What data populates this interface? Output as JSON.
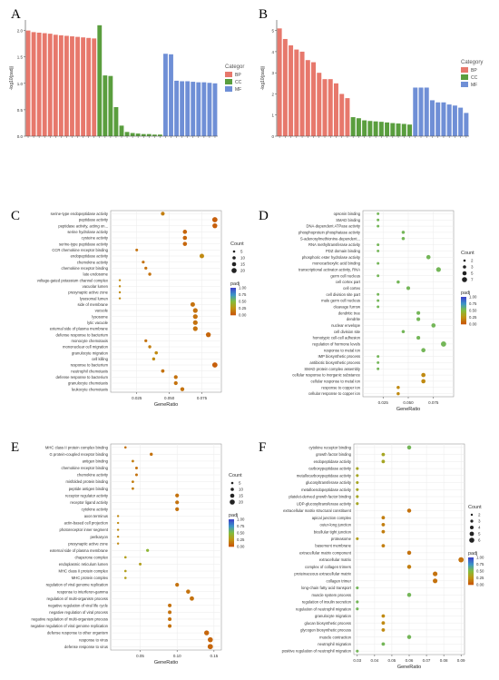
{
  "panel_letters": [
    "A",
    "B",
    "C",
    "D",
    "E",
    "F"
  ],
  "chart_data": [
    {
      "type": "bar",
      "panel": "A",
      "ylabel": "-log10(padj)",
      "legend_title": "Categor",
      "legend_placement": "right",
      "groups": [
        "BP",
        "CC",
        "MF"
      ],
      "colors": {
        "BP": "#e7786c",
        "CC": "#5a9e3e",
        "MF": "#6f8fd6"
      },
      "ylim": [
        0,
        2.2
      ],
      "yticks": [
        "0.0",
        "0.5",
        "1.0",
        "1.5",
        "2.0"
      ],
      "values": [
        2.0,
        1.97,
        1.96,
        1.95,
        1.94,
        1.92,
        1.91,
        1.9,
        1.89,
        1.88,
        1.87,
        1.86,
        1.85,
        2.1,
        1.15,
        1.14,
        0.55,
        0.2,
        0.08,
        0.06,
        0.05,
        0.04,
        0.04,
        0.03,
        0.03,
        1.56,
        1.55,
        1.05,
        1.04,
        1.04,
        1.03,
        1.02,
        1.02,
        1.01,
        1.0
      ],
      "bar_groups": [
        "BP",
        "BP",
        "BP",
        "BP",
        "BP",
        "BP",
        "BP",
        "BP",
        "BP",
        "BP",
        "BP",
        "BP",
        "BP",
        "CC",
        "CC",
        "CC",
        "CC",
        "CC",
        "CC",
        "CC",
        "CC",
        "CC",
        "CC",
        "CC",
        "CC",
        "MF",
        "MF",
        "MF",
        "MF",
        "MF",
        "MF",
        "MF",
        "MF",
        "MF",
        "MF"
      ]
    },
    {
      "type": "bar",
      "panel": "B",
      "ylabel": "-log10(padj)",
      "legend_title": "Category",
      "legend_placement": "right",
      "groups": [
        "BP",
        "CC",
        "MF"
      ],
      "colors": {
        "BP": "#e7786c",
        "CC": "#5a9e3e",
        "MF": "#6f8fd6"
      },
      "ylim": [
        0,
        5.5
      ],
      "yticks": [
        "0",
        "1",
        "2",
        "3",
        "4",
        "5"
      ],
      "values": [
        5.1,
        4.6,
        4.3,
        4.1,
        4.0,
        3.6,
        3.5,
        3.0,
        2.7,
        2.7,
        2.5,
        2.0,
        1.8,
        0.9,
        0.85,
        0.75,
        0.72,
        0.7,
        0.68,
        0.65,
        0.62,
        0.6,
        0.58,
        0.55,
        2.3,
        2.3,
        2.3,
        1.7,
        1.6,
        1.6,
        1.5,
        1.45,
        1.35,
        1.1
      ],
      "bar_groups": [
        "BP",
        "BP",
        "BP",
        "BP",
        "BP",
        "BP",
        "BP",
        "BP",
        "BP",
        "BP",
        "BP",
        "BP",
        "BP",
        "CC",
        "CC",
        "CC",
        "CC",
        "CC",
        "CC",
        "CC",
        "CC",
        "CC",
        "CC",
        "CC",
        "MF",
        "MF",
        "MF",
        "MF",
        "MF",
        "MF",
        "MF",
        "MF",
        "MF",
        "MF"
      ]
    },
    {
      "type": "scatter",
      "panel": "C",
      "xlabel": "GeneRatio",
      "xticks": [
        "0.025",
        "0.050",
        "0.075"
      ],
      "xlim": [
        0.005,
        0.09
      ],
      "size_legend_title": "Count",
      "size_legend": [
        "5",
        "10",
        "15",
        "20"
      ],
      "color_legend_title": "padj",
      "color_legend": [
        "1.00",
        "0.75",
        "0.50",
        "0.25",
        "0.00"
      ],
      "terms": [
        "serine-type endopeptidase activity",
        "peptidase activity",
        "peptidase activity, acting on...",
        "serine hydrolase activity",
        "cysteine activity",
        "serine-type peptidase activity",
        "CCR chemokine receptor binding",
        "endopeptidase activity",
        "chemokine activity",
        "chemokine receptor binding",
        "late endosome",
        "voltage-gated potassium channel complex",
        "vacuolar lumen",
        "presynaptic active zone",
        "lysosomal lumen",
        "side of membrane",
        "vacuole",
        "lysosome",
        "lytic vacuole",
        "external side of plasma membrane",
        "defense response to bacterium",
        "monocyte chemotaxis",
        "mononuclear cell migration",
        "granulocyte migration",
        "cell killing",
        "response to bacterium",
        "neutrophil chemotaxis",
        "defense response to bacterium",
        "granulocyte chemotaxis",
        "leukocyte chemotaxis"
      ],
      "x": [
        0.045,
        0.085,
        0.085,
        0.062,
        0.062,
        0.062,
        0.025,
        0.075,
        0.03,
        0.032,
        0.035,
        0.012,
        0.012,
        0.012,
        0.012,
        0.068,
        0.07,
        0.07,
        0.07,
        0.07,
        0.08,
        0.032,
        0.035,
        0.04,
        0.038,
        0.085,
        0.045,
        0.055,
        0.055,
        0.06
      ],
      "count": [
        12,
        20,
        18,
        14,
        14,
        14,
        6,
        16,
        7,
        7,
        8,
        3,
        3,
        3,
        3,
        16,
        17,
        17,
        17,
        17,
        18,
        7,
        8,
        9,
        8,
        20,
        10,
        12,
        12,
        13
      ],
      "padj": [
        0.15,
        0.02,
        0.02,
        0.05,
        0.05,
        0.05,
        0.1,
        0.2,
        0.1,
        0.1,
        0.1,
        0.2,
        0.2,
        0.2,
        0.2,
        0.1,
        0.1,
        0.1,
        0.1,
        0.1,
        0.05,
        0.1,
        0.15,
        0.2,
        0.2,
        0.02,
        0.1,
        0.1,
        0.1,
        0.1
      ]
    },
    {
      "type": "scatter",
      "panel": "D",
      "xlabel": "GeneRatio",
      "xticks": [
        "0.025",
        "0.050",
        "0.075"
      ],
      "xlim": [
        0.005,
        0.095
      ],
      "size_legend_title": "Count",
      "size_legend": [
        "2",
        "3",
        "5",
        "7"
      ],
      "color_legend_title": "padj",
      "color_legend": [
        "1.00",
        "0.75",
        "0.50",
        "0.25",
        "0.00"
      ],
      "terms": [
        "opsonin binding",
        "SMAD binding",
        "DNA-dependent ATPase activity",
        "phosphoprotein phosphatase activity",
        "S-adenosylmethionine-dependent...",
        "RNA methyltransferase activity",
        "PDZ domain binding",
        "phosphoric ester hydrolase activity",
        "monocarboxylic acid binding",
        "transcriptional activator activity, RNA",
        "germ cell nucleus",
        "cell cortex part",
        "cell cortex",
        "cell division site part",
        "male germ cell nucleus",
        "cleavage furrow",
        "dendritic tree",
        "dendrite",
        "nuclear envelope",
        "cell division site",
        "homotypic cell-cell adhesion",
        "regulation of hormone levels",
        "response to metal ion",
        "IMP biosynthetic process",
        "antibiotic biosynthetic process",
        "SMAD protein complex assembly",
        "cellular response to inorganic substance",
        "cellular response to metal ion",
        "response to copper ion",
        "cellular response to copper ion"
      ],
      "x": [
        0.02,
        0.02,
        0.02,
        0.045,
        0.045,
        0.02,
        0.02,
        0.07,
        0.02,
        0.08,
        0.02,
        0.04,
        0.05,
        0.02,
        0.02,
        0.02,
        0.06,
        0.06,
        0.075,
        0.045,
        0.06,
        0.085,
        0.065,
        0.02,
        0.02,
        0.02,
        0.065,
        0.065,
        0.04,
        0.04
      ],
      "count": [
        2,
        2,
        2,
        3,
        3,
        2,
        2,
        5,
        2,
        6,
        2,
        3,
        4,
        2,
        2,
        2,
        4,
        4,
        5,
        3,
        4,
        7,
        5,
        2,
        2,
        2,
        5,
        5,
        3,
        3
      ],
      "padj": [
        0.55,
        0.55,
        0.55,
        0.55,
        0.55,
        0.55,
        0.55,
        0.55,
        0.55,
        0.55,
        0.55,
        0.55,
        0.55,
        0.55,
        0.55,
        0.55,
        0.55,
        0.55,
        0.55,
        0.55,
        0.55,
        0.55,
        0.55,
        0.55,
        0.55,
        0.55,
        0.2,
        0.2,
        0.2,
        0.2
      ]
    },
    {
      "type": "scatter",
      "panel": "E",
      "xlabel": "GeneRatio",
      "xticks": [
        "0.05",
        "0.10",
        "0.15"
      ],
      "xlim": [
        0.01,
        0.16
      ],
      "size_legend_title": "Count",
      "size_legend": [
        "5",
        "10",
        "15",
        "20"
      ],
      "color_legend_title": "padj",
      "color_legend": [
        "1.00",
        "0.75",
        "0.50",
        "0.25",
        "0.00"
      ],
      "terms": [
        "MHC class II protein complex binding",
        "G protein-coupled receptor binding",
        "antigen binding",
        "chemokine receptor binding",
        "chemokine activity",
        "misfolded protein binding",
        "peptide antigen binding",
        "receptor regulator activity",
        "receptor ligand activity",
        "cytokine activity",
        "axon terminus",
        "actin-based cell projection",
        "photoreceptor inner segment",
        "perikaryon",
        "presynaptic active zone",
        "external side of plasma membrane",
        "chaperone complex",
        "endoplasmic reticulum lumen",
        "MHC class II protein complex",
        "MHC protein complex",
        "regulation of viral genome replication",
        "response to interferon-gamma",
        "regulation of multi-organism process",
        "negative regulation of viral life cycle",
        "negative regulation of viral process",
        "negative regulation of multi-organism process",
        "negative regulation of viral genome replication",
        "defense response to other organism",
        "response to virus",
        "defense response to virus"
      ],
      "x": [
        0.03,
        0.065,
        0.04,
        0.045,
        0.045,
        0.04,
        0.04,
        0.1,
        0.1,
        0.1,
        0.02,
        0.02,
        0.02,
        0.02,
        0.02,
        0.06,
        0.03,
        0.05,
        0.03,
        0.03,
        0.1,
        0.115,
        0.12,
        0.09,
        0.09,
        0.09,
        0.09,
        0.14,
        0.145,
        0.145
      ],
      "count": [
        4,
        8,
        5,
        6,
        6,
        5,
        5,
        12,
        12,
        12,
        3,
        3,
        3,
        3,
        3,
        7,
        4,
        6,
        4,
        4,
        12,
        14,
        15,
        11,
        11,
        11,
        11,
        18,
        19,
        20
      ],
      "padj": [
        0.1,
        0.1,
        0.15,
        0.1,
        0.1,
        0.15,
        0.15,
        0.1,
        0.1,
        0.1,
        0.2,
        0.2,
        0.2,
        0.2,
        0.2,
        0.45,
        0.3,
        0.3,
        0.3,
        0.3,
        0.1,
        0.1,
        0.1,
        0.1,
        0.1,
        0.1,
        0.1,
        0.05,
        0.05,
        0.05
      ]
    },
    {
      "type": "scatter",
      "panel": "F",
      "xlabel": "GeneRatio",
      "xticks": [
        "0.03",
        "0.04",
        "0.05",
        "0.06",
        "0.07",
        "0.08",
        "0.09"
      ],
      "xlim": [
        0.028,
        0.092
      ],
      "size_legend_title": "Count",
      "size_legend": [
        "2",
        "3",
        "4",
        "5",
        "6"
      ],
      "color_legend_title": "padj",
      "color_legend": [
        "1.00",
        "0.75",
        "0.50",
        "0.25",
        "0.00"
      ],
      "terms": [
        "cytokine receptor binding",
        "growth factor binding",
        "endopeptidase activity",
        "carboxypeptidase activity",
        "metallocarboxypeptidase activity",
        "glucosyltransferase activity",
        "metalloendopeptidase activity",
        "platelet-derived growth factor binding",
        "UDP-glucosyltransferase activity",
        "extracellular matrix structural constituent",
        "apical junction complex",
        "outer-long junction",
        "bicellular tight junction",
        "proteasome",
        "basement membrane",
        "extracellular matrix component",
        "extracellular matrix",
        "complex of collagen trimers",
        "proteinaceous extracellular matrix",
        "collagen trimer",
        "long-chain fatty acid transport",
        "muscle system process",
        "regulation of insulin secretion",
        "regulation of neutrophil migration",
        "granulocyte migration",
        "glucan biosynthetic process",
        "glycogen biosynthetic process",
        "muscle contraction",
        "neutrophil migration",
        "positive regulation of neutrophil migration"
      ],
      "x": [
        0.06,
        0.045,
        0.045,
        0.03,
        0.03,
        0.03,
        0.03,
        0.03,
        0.03,
        0.06,
        0.045,
        0.045,
        0.045,
        0.03,
        0.045,
        0.06,
        0.09,
        0.06,
        0.075,
        0.075,
        0.03,
        0.06,
        0.03,
        0.03,
        0.045,
        0.045,
        0.045,
        0.06,
        0.045,
        0.03
      ],
      "count": [
        4,
        3,
        3,
        2,
        2,
        2,
        2,
        2,
        2,
        4,
        3,
        3,
        3,
        2,
        3,
        4,
        6,
        4,
        5,
        5,
        2,
        4,
        2,
        2,
        3,
        3,
        3,
        4,
        3,
        2
      ],
      "padj": [
        0.55,
        0.35,
        0.35,
        0.35,
        0.35,
        0.35,
        0.35,
        0.35,
        0.35,
        0.1,
        0.15,
        0.15,
        0.15,
        0.3,
        0.15,
        0.1,
        0.1,
        0.15,
        0.1,
        0.1,
        0.55,
        0.55,
        0.55,
        0.55,
        0.2,
        0.2,
        0.2,
        0.55,
        0.55,
        0.55
      ]
    }
  ]
}
